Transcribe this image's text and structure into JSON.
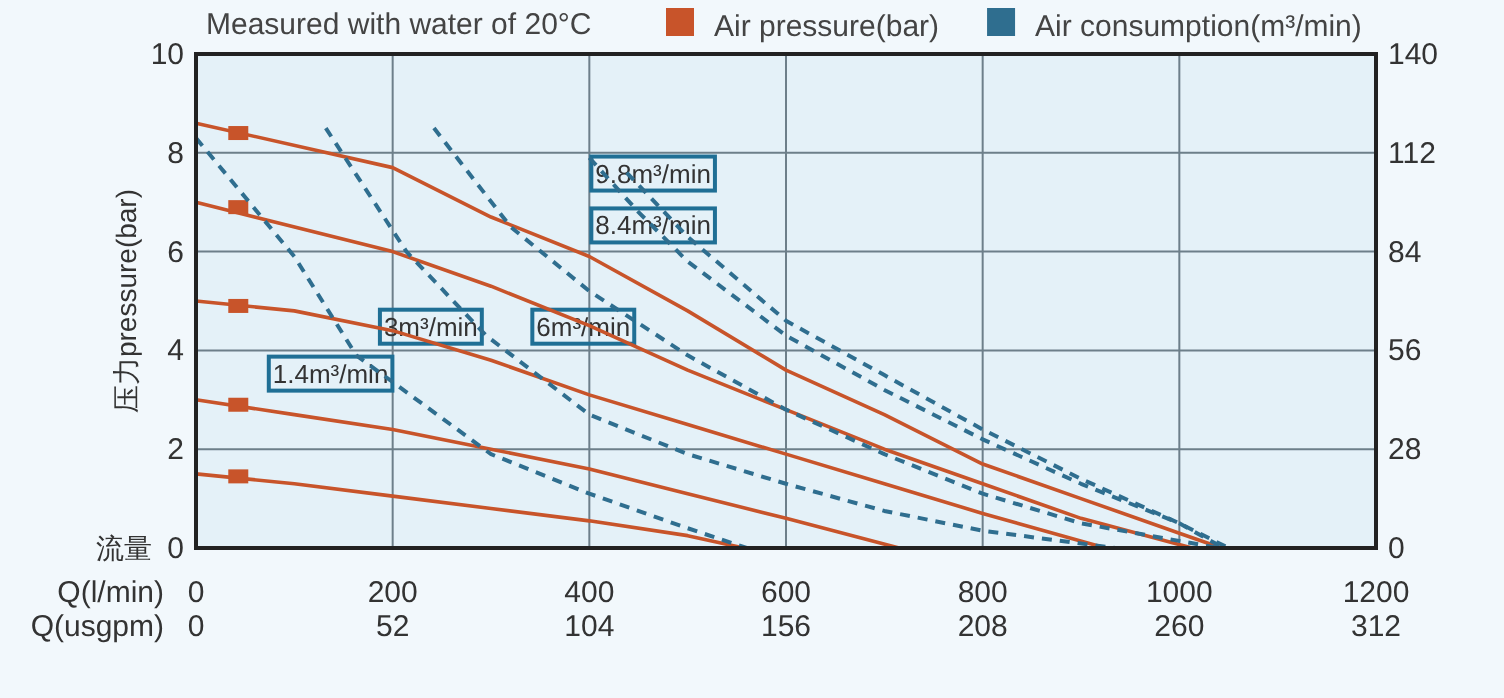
{
  "chart_data": {
    "type": "line",
    "subtitle": "Measured with water of 20°C",
    "xlabel": "Q(l/min)",
    "x2label": "Q(usgpm)",
    "ylabel": "压力pressure(bar)",
    "xlim": [
      0,
      1200
    ],
    "xticks": [
      0,
      200,
      400,
      600,
      800,
      1000,
      1200
    ],
    "x2lim": [
      0,
      312
    ],
    "x2ticks": [
      0,
      52,
      104,
      156,
      208,
      260,
      312
    ],
    "ylim": [
      0,
      10
    ],
    "yticks": [
      0,
      2,
      4,
      6,
      8,
      10
    ],
    "y2lim": [
      0,
      140
    ],
    "y2ticks": [
      0,
      28,
      56,
      84,
      112,
      140
    ],
    "grid": true,
    "legend": "top right",
    "series": [
      {
        "name": "Air pressure(bar)",
        "color": "#c8542a",
        "line_style": "solid",
        "x": [
          0,
          200,
          300,
          400,
          500,
          600,
          700,
          800,
          900,
          1000,
          1043
        ],
        "values": [
          8.6,
          7.7,
          6.7,
          5.9,
          4.8,
          3.6,
          2.7,
          1.7,
          1.0,
          0.3,
          0
        ]
      },
      {
        "color": "#c8542a",
        "line_style": "solid",
        "x": [
          0,
          200,
          300,
          400,
          500,
          600,
          700,
          800,
          900,
          1013
        ],
        "values": [
          7.0,
          6.0,
          5.3,
          4.5,
          3.6,
          2.8,
          2.0,
          1.3,
          0.6,
          0
        ]
      },
      {
        "color": "#c8542a",
        "line_style": "solid",
        "x": [
          0,
          100,
          200,
          300,
          400,
          500,
          600,
          700,
          800,
          925
        ],
        "values": [
          5.0,
          4.8,
          4.4,
          3.8,
          3.1,
          2.5,
          1.9,
          1.3,
          0.7,
          0
        ]
      },
      {
        "color": "#c8542a",
        "line_style": "solid",
        "x": [
          0,
          100,
          200,
          300,
          400,
          500,
          600,
          715
        ],
        "values": [
          3.0,
          2.7,
          2.4,
          2.0,
          1.6,
          1.1,
          0.6,
          0
        ]
      },
      {
        "color": "#c8542a",
        "line_style": "solid",
        "x": [
          0,
          100,
          200,
          300,
          400,
          500,
          557
        ],
        "values": [
          1.5,
          1.3,
          1.05,
          0.8,
          0.55,
          0.25,
          0
        ]
      },
      {
        "type": "scatter",
        "marker": "square",
        "color": "#c8542a",
        "x": [
          43,
          43,
          43,
          43,
          43
        ],
        "values": [
          8.4,
          6.9,
          4.9,
          2.9,
          1.45
        ]
      },
      {
        "name": "Air consumption(m³/min)",
        "color": "#2f6e8f",
        "line_style": "dashed",
        "x": [
          0,
          100,
          163,
          300,
          400,
          500,
          560
        ],
        "values": [
          8.3,
          5.9,
          3.9,
          1.9,
          1.1,
          0.4,
          0
        ]
      },
      {
        "color": "#2f6e8f",
        "line_style": "dashed",
        "x": [
          132,
          214,
          295,
          400,
          500,
          600,
          700,
          800,
          935
        ],
        "values": [
          8.5,
          6.0,
          4.3,
          2.7,
          1.9,
          1.3,
          0.75,
          0.35,
          0
        ]
      },
      {
        "color": "#2f6e8f",
        "line_style": "dashed",
        "x": [
          242,
          320,
          400,
          500,
          600,
          700,
          800,
          900,
          1040
        ],
        "values": [
          8.5,
          6.5,
          5.2,
          3.9,
          2.8,
          1.9,
          1.1,
          0.5,
          0
        ]
      },
      {
        "color": "#2f6e8f",
        "line_style": "dashed",
        "x": [
          400,
          450,
          500,
          600,
          700,
          800,
          900,
          1000,
          1045
        ],
        "values": [
          7.9,
          6.8,
          5.8,
          4.3,
          3.2,
          2.2,
          1.3,
          0.5,
          0
        ]
      },
      {
        "color": "#2f6e8f",
        "line_style": "dashed",
        "x": [
          438,
          500,
          600,
          700,
          800,
          900,
          1000,
          1050
        ],
        "values": [
          7.6,
          6.3,
          4.6,
          3.5,
          2.4,
          1.4,
          0.5,
          0
        ]
      }
    ],
    "annotations": [
      "流量",
      "1.4m³/min",
      "3m³/min",
      "6m³/min",
      "8.4m³/min",
      "9.8m³/min"
    ]
  }
}
